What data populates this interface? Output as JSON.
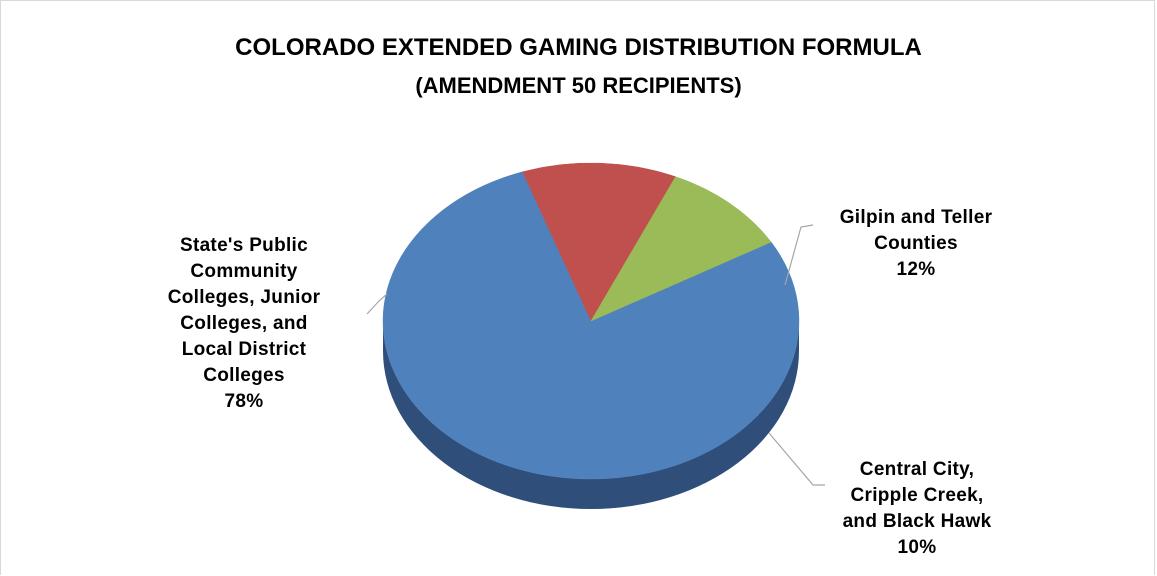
{
  "chart_data": {
    "type": "pie",
    "style": "3d-exploded-tilted",
    "title_lines": [
      "COLORADO EXTENDED GAMING DISTRIBUTION FORMULA",
      "(AMENDMENT 50 RECIPIENTS)"
    ],
    "slices": [
      {
        "label_lines": [
          "State's Public",
          "Community",
          "Colleges, Junior",
          "Colleges, and",
          "Local District",
          "Colleges"
        ],
        "percent_text": "78%",
        "value": 78,
        "color": "#4f81bd",
        "side_color": "#2f4f7a"
      },
      {
        "label_lines": [
          "Gilpin and Teller",
          "Counties"
        ],
        "percent_text": "12%",
        "value": 12,
        "color": "#c0504d",
        "side_color": "#7a2f2d"
      },
      {
        "label_lines": [
          "Central City,",
          "Cripple Creek,",
          "and Black Hawk"
        ],
        "percent_text": "10%",
        "value": 10,
        "color": "#9bbb59",
        "side_color": "#5f7335"
      }
    ]
  }
}
